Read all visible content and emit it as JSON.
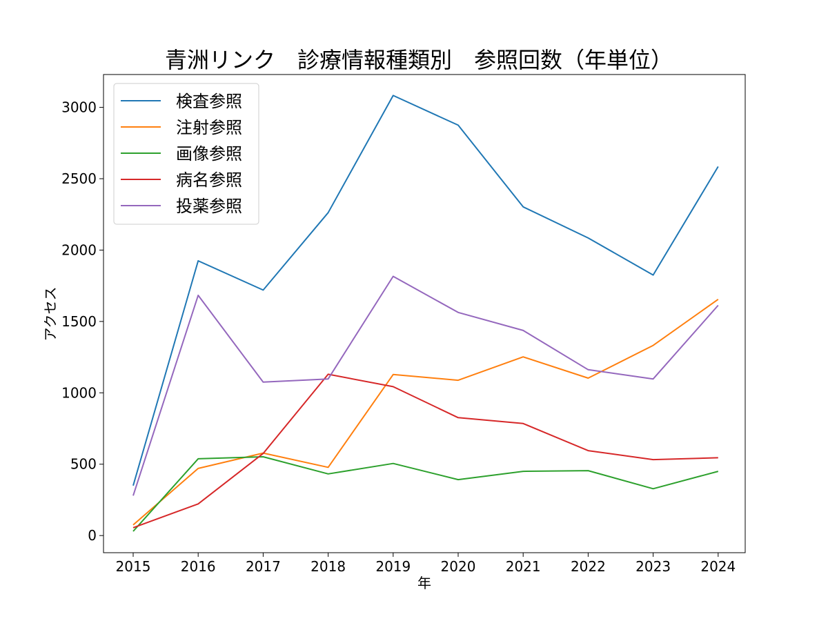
{
  "chart_data": {
    "type": "line",
    "title": "青洲リンク　診療情報種類別　参照回数（年単位）",
    "xlabel": "年",
    "ylabel": "アクセス",
    "categories": [
      "2015",
      "2016",
      "2017",
      "2018",
      "2019",
      "2020",
      "2021",
      "2022",
      "2023",
      "2024"
    ],
    "ylim": [
      -120,
      3230
    ],
    "yticks": [
      0,
      500,
      1000,
      1500,
      2000,
      2500,
      3000
    ],
    "grid": false,
    "legend_position": "top-left",
    "series": [
      {
        "name": "検査参照",
        "color": "#1f77b4",
        "values": [
          350,
          1925,
          1720,
          2262,
          3083,
          2875,
          2303,
          2085,
          1825,
          2585
        ]
      },
      {
        "name": "注射参照",
        "color": "#ff7f0e",
        "values": [
          75,
          470,
          578,
          478,
          1128,
          1088,
          1252,
          1103,
          1332,
          1655
        ]
      },
      {
        "name": "画像参照",
        "color": "#2ca02c",
        "values": [
          30,
          538,
          552,
          432,
          505,
          392,
          450,
          455,
          328,
          450
        ]
      },
      {
        "name": "病名参照",
        "color": "#d62728",
        "values": [
          55,
          222,
          575,
          1130,
          1043,
          826,
          785,
          595,
          532,
          545
        ]
      },
      {
        "name": "投薬参照",
        "color": "#9467bd",
        "values": [
          280,
          1683,
          1075,
          1097,
          1816,
          1563,
          1437,
          1162,
          1097,
          1613
        ]
      }
    ]
  }
}
